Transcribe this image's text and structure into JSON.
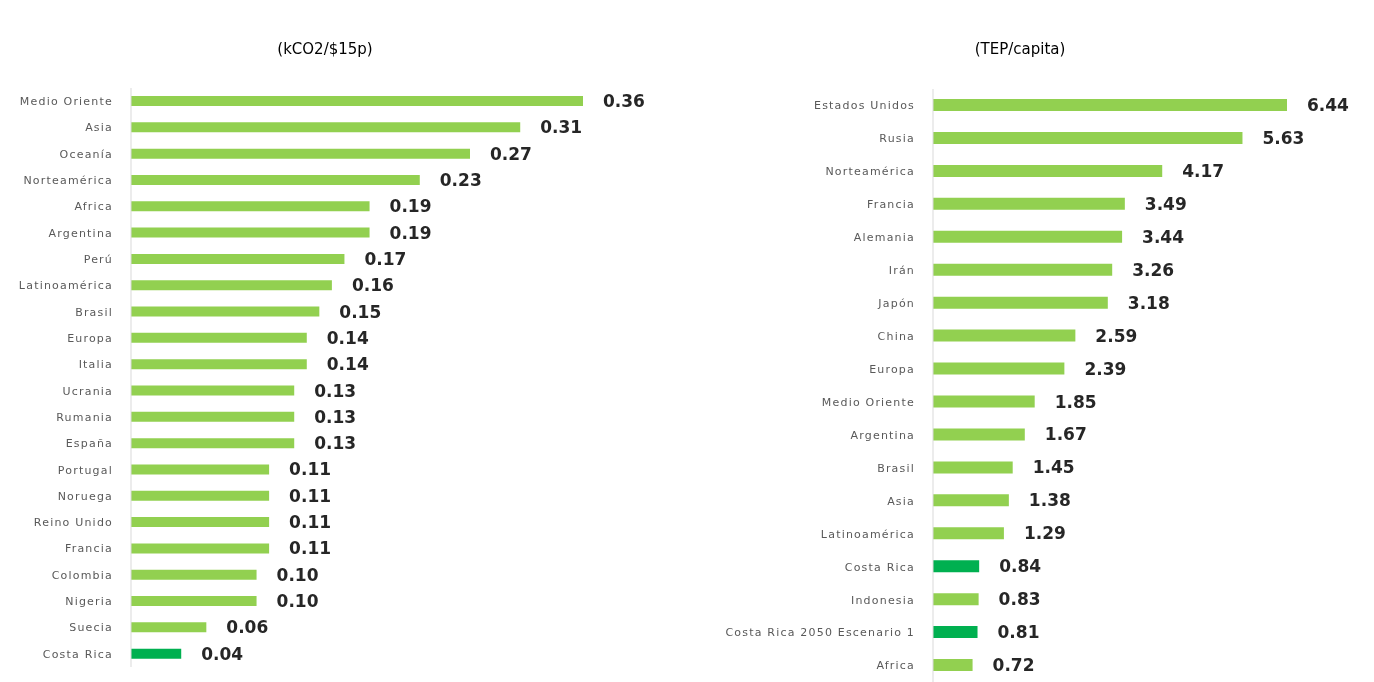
{
  "chart_data": [
    {
      "type": "bar",
      "orientation": "horizontal",
      "title": "(kCO2/$15p)",
      "categories": [
        "Medio Oriente",
        "Asia",
        "Oceanía",
        "Norteamérica",
        "Africa",
        "Argentina",
        "Perú",
        "Latinoamérica",
        "Brasil",
        "Europa",
        "Italia",
        "Ucrania",
        "Rumania",
        "España",
        "Portugal",
        "Noruega",
        "Reino Unido",
        "Francia",
        "Colombia",
        "Nigeria",
        "Suecia",
        "Costa Rica"
      ],
      "values": [
        0.36,
        0.31,
        0.27,
        0.23,
        0.19,
        0.19,
        0.17,
        0.16,
        0.15,
        0.14,
        0.14,
        0.13,
        0.13,
        0.13,
        0.11,
        0.11,
        0.11,
        0.11,
        0.1,
        0.1,
        0.06,
        0.04
      ],
      "value_labels": [
        "0.36",
        "0.31",
        "0.27",
        "0.23",
        "0.19",
        "0.19",
        "0.17",
        "0.16",
        "0.15",
        "0.14",
        "0.14",
        "0.13",
        "0.13",
        "0.13",
        "0.11",
        "0.11",
        "0.11",
        "0.11",
        "0.10",
        "0.10",
        "0.06",
        "0.04"
      ],
      "colors": [
        "#92d050",
        "#92d050",
        "#92d050",
        "#92d050",
        "#92d050",
        "#92d050",
        "#92d050",
        "#92d050",
        "#92d050",
        "#92d050",
        "#92d050",
        "#92d050",
        "#92d050",
        "#92d050",
        "#92d050",
        "#92d050",
        "#92d050",
        "#92d050",
        "#92d050",
        "#92d050",
        "#92d050",
        "#00b050"
      ]
    },
    {
      "type": "bar",
      "orientation": "horizontal",
      "title": "(TEP/capita)",
      "categories": [
        "Estados Unidos",
        "Rusia",
        "Norteamérica",
        "Francia",
        "Alemania",
        "Irán",
        "Japón",
        "China",
        "Europa",
        "Medio Oriente",
        "Argentina",
        "Brasil",
        "Asia",
        "Latinoamérica",
        "Costa Rica",
        "Indonesia",
        "Costa Rica 2050 Escenario 1",
        "Africa"
      ],
      "values": [
        6.44,
        5.63,
        4.17,
        3.49,
        3.44,
        3.26,
        3.18,
        2.59,
        2.39,
        1.85,
        1.67,
        1.45,
        1.38,
        1.29,
        0.84,
        0.83,
        0.81,
        0.72
      ],
      "value_labels": [
        "6.44",
        "5.63",
        "4.17",
        "3.49",
        "3.44",
        "3.26",
        "3.18",
        "2.59",
        "2.39",
        "1.85",
        "1.67",
        "1.45",
        "1.38",
        "1.29",
        "0.84",
        "0.83",
        "0.81",
        "0.72"
      ],
      "colors": [
        "#92d050",
        "#92d050",
        "#92d050",
        "#92d050",
        "#92d050",
        "#92d050",
        "#92d050",
        "#92d050",
        "#92d050",
        "#92d050",
        "#92d050",
        "#92d050",
        "#92d050",
        "#92d050",
        "#00b050",
        "#92d050",
        "#00b050",
        "#92d050"
      ]
    }
  ]
}
